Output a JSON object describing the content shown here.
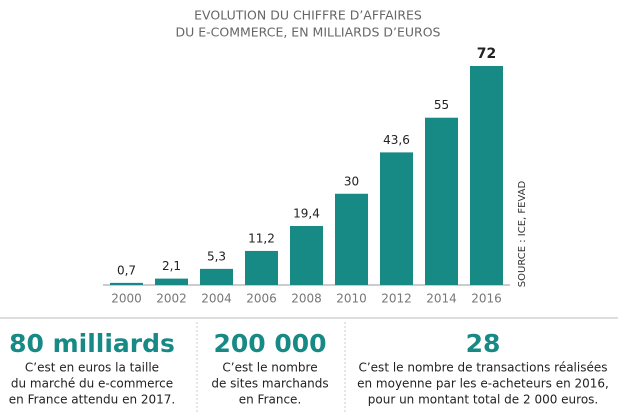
{
  "chart_data": {
    "type": "bar",
    "title": [
      "EVOLUTION DU CHIFFRE D’AFFAIRES",
      "DU E-COMMERCE, EN MILLIARDS D’EUROS"
    ],
    "categories": [
      "2000",
      "2002",
      "2004",
      "2006",
      "2008",
      "2010",
      "2012",
      "2014",
      "2016"
    ],
    "values": [
      0.7,
      2.1,
      5.3,
      11.2,
      19.4,
      30,
      43.6,
      55,
      72
    ],
    "value_labels": [
      "0,7",
      "2,1",
      "5,3",
      "11,2",
      "19,4",
      "30",
      "43,6",
      "55",
      "72"
    ],
    "color": "#178a86",
    "ylim": [
      0,
      72
    ],
    "source": "SOURCE : ICE, FEVAD"
  },
  "stats": [
    {
      "figure": "80 milliards",
      "lines": [
        "C’est en euros la taille",
        "du marché du e-commerce",
        "en France  attendu en 2017."
      ]
    },
    {
      "figure": "200 000",
      "lines": [
        "C’est le nombre",
        "de sites marchands",
        "en France."
      ]
    },
    {
      "figure": "28",
      "lines": [
        "C’est le nombre de transactions réalisées",
        "en moyenne par les e-acheteurs en 2016,",
        "pour un montant total de 2 000 euros."
      ]
    }
  ]
}
